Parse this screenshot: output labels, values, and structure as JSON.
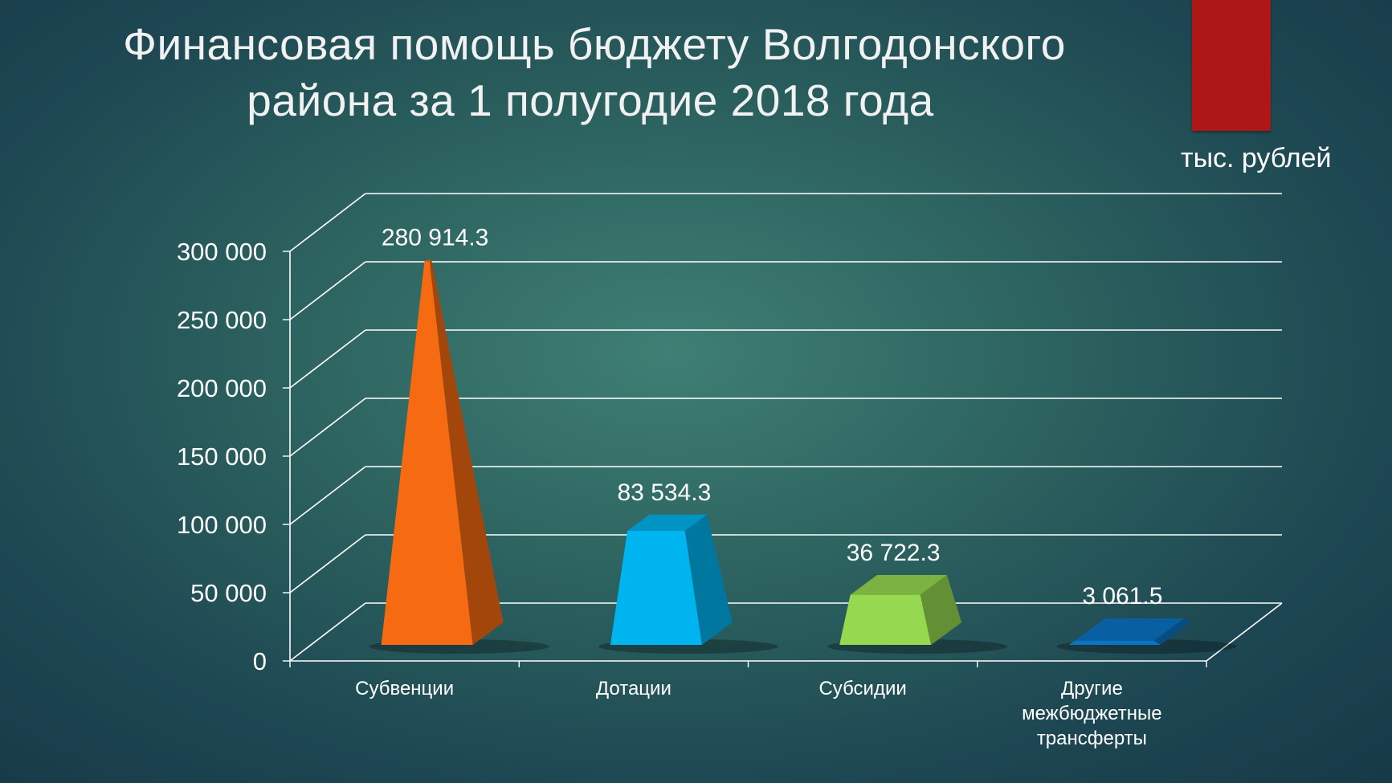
{
  "slide": {
    "title_line1": "Финансовая помощь бюджету Волгодонского",
    "title_line2": "района за 1 полугодие 2018 года",
    "unit_label": "тыс. рублей",
    "accent_color": "#ad1715"
  },
  "chart_data": {
    "type": "bar",
    "shape_style": "3d-pyramid-truncated",
    "title": "",
    "xlabel": "",
    "ylabel": "",
    "ylim": [
      0,
      300000
    ],
    "y_ticks": [
      0,
      50000,
      100000,
      150000,
      200000,
      250000,
      300000
    ],
    "y_tick_labels": [
      "0",
      "50 000",
      "100 000",
      "150 000",
      "200 000",
      "250 000",
      "300 000"
    ],
    "grid": true,
    "categories": [
      [
        "Субвенции"
      ],
      [
        "Дотации"
      ],
      [
        "Субсидии"
      ],
      [
        "Другие",
        "межбюджетные",
        "трансферты"
      ]
    ],
    "values": [
      280914.3,
      83534.3,
      36722.3,
      3061.5
    ],
    "data_labels": [
      "280 914.3",
      "83 534.3",
      "36 722.3",
      "3 061.5"
    ],
    "colors": [
      "#f66a12",
      "#00b4f0",
      "#96d950",
      "#0a74c4"
    ]
  }
}
